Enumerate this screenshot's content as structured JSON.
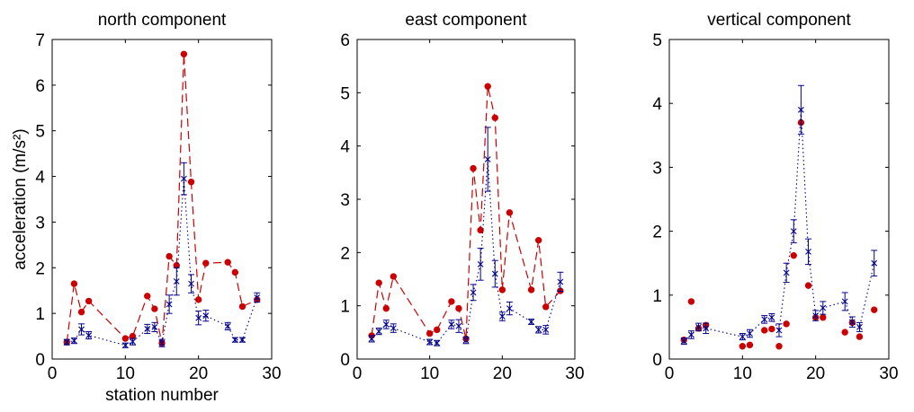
{
  "chart_data": [
    {
      "type": "line",
      "title": "north component",
      "xlabel": "station number",
      "ylabel": "acceleration (m/s²)",
      "xlim": [
        0,
        30
      ],
      "ylim": [
        0,
        7
      ],
      "xticks": [
        "0",
        "10",
        "20",
        "30"
      ],
      "yticks": [
        "0",
        "1",
        "2",
        "3",
        "4",
        "5",
        "6",
        "7"
      ],
      "series": [
        {
          "style": "dashed-circles",
          "color": "#cc0000",
          "x": [
            2,
            3,
            4,
            5,
            10,
            11,
            13,
            14,
            15,
            16,
            17,
            18,
            19,
            20,
            21,
            24,
            25,
            26,
            28
          ],
          "y": [
            0.37,
            1.65,
            1.03,
            1.27,
            0.45,
            0.5,
            1.38,
            1.1,
            0.35,
            2.25,
            2.05,
            6.68,
            3.88,
            1.3,
            2.1,
            2.12,
            1.9,
            1.15,
            1.3
          ]
        },
        {
          "style": "dotted-errorbars",
          "color": "#00008b",
          "x": [
            2,
            3,
            4,
            5,
            10,
            11,
            13,
            14,
            15,
            16,
            17,
            18,
            19,
            20,
            21,
            24,
            25,
            26,
            28
          ],
          "y": [
            0.37,
            0.4,
            0.65,
            0.52,
            0.3,
            0.38,
            0.66,
            0.7,
            0.35,
            1.2,
            1.7,
            3.95,
            1.65,
            0.9,
            0.95,
            0.72,
            0.42,
            0.42,
            1.35
          ],
          "err": [
            0.06,
            0.06,
            0.12,
            0.08,
            0.05,
            0.07,
            0.1,
            0.1,
            0.08,
            0.2,
            0.3,
            0.35,
            0.2,
            0.15,
            0.12,
            0.08,
            0.05,
            0.05,
            0.1
          ]
        }
      ]
    },
    {
      "type": "line",
      "title": "east component",
      "xlabel": "",
      "ylabel": "",
      "xlim": [
        0,
        30
      ],
      "ylim": [
        0,
        6
      ],
      "xticks": [
        "0",
        "10",
        "20",
        "30"
      ],
      "yticks": [
        "0",
        "1",
        "2",
        "3",
        "4",
        "5",
        "6"
      ],
      "series": [
        {
          "style": "dashed-circles",
          "color": "#cc0000",
          "x": [
            2,
            3,
            4,
            5,
            10,
            11,
            13,
            14,
            15,
            16,
            17,
            18,
            19,
            20,
            21,
            24,
            25,
            26,
            28
          ],
          "y": [
            0.44,
            1.43,
            0.95,
            1.55,
            0.48,
            0.55,
            1.08,
            0.95,
            0.38,
            3.58,
            2.42,
            5.12,
            4.53,
            1.3,
            2.75,
            1.3,
            2.23,
            0.98,
            1.28
          ]
        },
        {
          "style": "dotted-errorbars",
          "color": "#00008b",
          "x": [
            2,
            3,
            4,
            5,
            10,
            11,
            13,
            14,
            15,
            16,
            17,
            18,
            19,
            20,
            21,
            24,
            25,
            26,
            28
          ],
          "y": [
            0.38,
            0.52,
            0.65,
            0.58,
            0.32,
            0.3,
            0.65,
            0.62,
            0.35,
            1.25,
            1.78,
            3.75,
            1.6,
            0.8,
            0.95,
            0.7,
            0.55,
            0.55,
            1.45
          ],
          "err": [
            0.06,
            0.06,
            0.08,
            0.08,
            0.05,
            0.05,
            0.08,
            0.12,
            0.06,
            0.15,
            0.3,
            0.6,
            0.25,
            0.08,
            0.12,
            0.05,
            0.06,
            0.08,
            0.18
          ]
        }
      ]
    },
    {
      "type": "line",
      "title": "vertical component",
      "xlabel": "",
      "ylabel": "",
      "xlim": [
        0,
        30
      ],
      "ylim": [
        0,
        5
      ],
      "xticks": [
        "0",
        "10",
        "20",
        "30"
      ],
      "yticks": [
        "0",
        "1",
        "2",
        "3",
        "4",
        "5"
      ],
      "series": [
        {
          "style": "circles",
          "color": "#cc0000",
          "x": [
            2,
            3,
            4,
            5,
            10,
            11,
            13,
            14,
            15,
            16,
            17,
            18,
            19,
            20,
            21,
            24,
            25,
            26,
            28
          ],
          "y": [
            0.3,
            0.9,
            0.48,
            0.53,
            0.2,
            0.22,
            0.45,
            0.47,
            0.2,
            0.55,
            1.62,
            3.7,
            1.15,
            0.65,
            0.65,
            0.42,
            0.57,
            0.35,
            0.77
          ]
        },
        {
          "style": "dotted-errorbars",
          "color": "#00008b",
          "x": [
            2,
            3,
            4,
            5,
            10,
            11,
            13,
            14,
            15,
            16,
            17,
            18,
            19,
            20,
            21,
            24,
            25,
            26,
            28
          ],
          "y": [
            0.28,
            0.38,
            0.5,
            0.48,
            0.35,
            0.4,
            0.62,
            0.65,
            0.45,
            1.35,
            2.0,
            3.9,
            1.68,
            0.68,
            0.8,
            0.9,
            0.58,
            0.5,
            1.5
          ],
          "err": [
            0.05,
            0.06,
            0.06,
            0.08,
            0.05,
            0.06,
            0.06,
            0.06,
            0.1,
            0.15,
            0.18,
            0.38,
            0.2,
            0.08,
            0.1,
            0.14,
            0.08,
            0.07,
            0.2
          ]
        }
      ]
    }
  ]
}
